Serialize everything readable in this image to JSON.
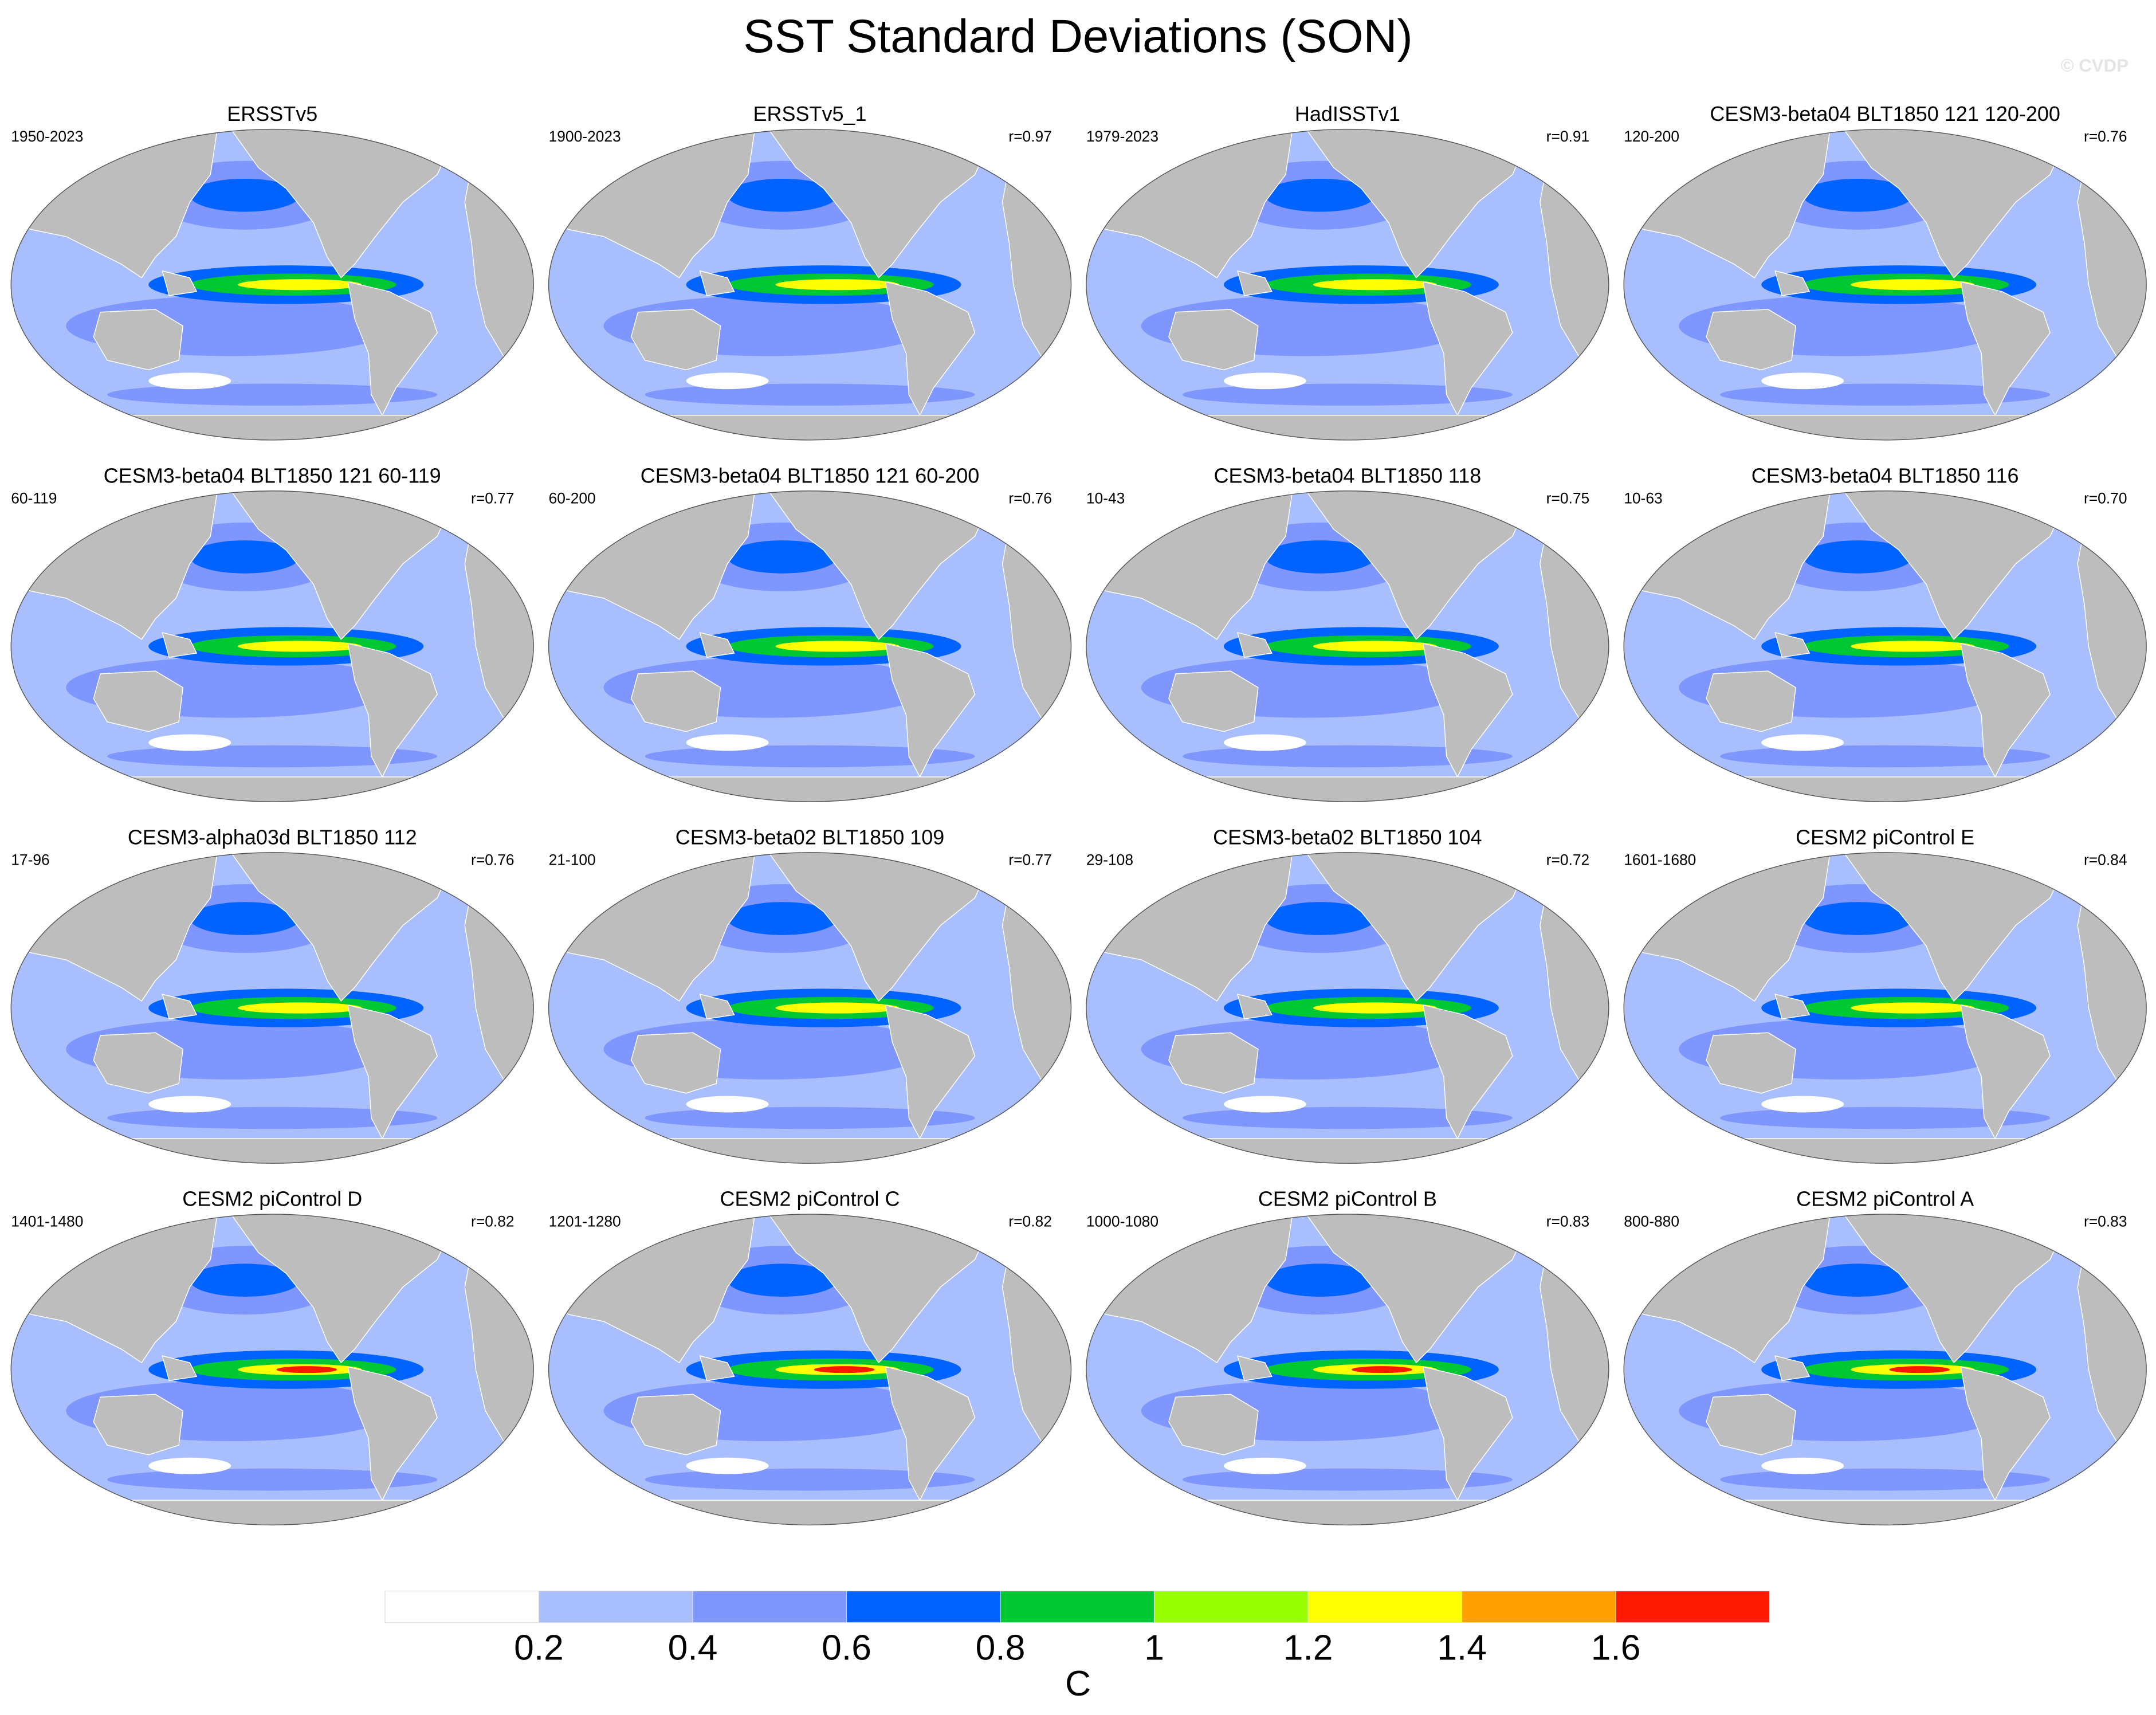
{
  "header": {
    "title": "SST Standard Deviations (SON)",
    "watermark": "© CVDP"
  },
  "panels": [
    {
      "title": "ERSSTv5",
      "period": "1950-2023"
    },
    {
      "title": "ERSSTv5_1",
      "period": "1900-2023",
      "r": "r=0.97"
    },
    {
      "title": "HadISSTv1",
      "period": "1979-2023",
      "r": "r=0.91"
    },
    {
      "title": "CESM3-beta04 BLT1850 121 120-200",
      "period": "120-200",
      "r": "r=0.76"
    },
    {
      "title": "CESM3-beta04 BLT1850 121 60-119",
      "period": "60-119",
      "r": "r=0.77"
    },
    {
      "title": "CESM3-beta04 BLT1850 121 60-200",
      "period": "60-200",
      "r": "r=0.76"
    },
    {
      "title": "CESM3-beta04 BLT1850 118",
      "period": "10-43",
      "r": "r=0.75"
    },
    {
      "title": "CESM3-beta04 BLT1850 116",
      "period": "10-63",
      "r": "r=0.70"
    },
    {
      "title": "CESM3-alpha03d BLT1850 112",
      "period": "17-96",
      "r": "r=0.76"
    },
    {
      "title": "CESM3-beta02 BLT1850 109",
      "period": "21-100",
      "r": "r=0.77"
    },
    {
      "title": "CESM3-beta02 BLT1850 104",
      "period": "29-108",
      "r": "r=0.72"
    },
    {
      "title": "CESM2 piControl E",
      "period": "1601-1680",
      "r": "r=0.84"
    },
    {
      "title": "CESM2 piControl D",
      "period": "1401-1480",
      "r": "r=0.82"
    },
    {
      "title": "CESM2 piControl C",
      "period": "1201-1280",
      "r": "r=0.82"
    },
    {
      "title": "CESM2 piControl B",
      "period": "1000-1080",
      "r": "r=0.83"
    },
    {
      "title": "CESM2 piControl A",
      "period": "800-880",
      "r": "r=0.83"
    }
  ],
  "colorbar": {
    "colors": [
      "#ffffff",
      "#a8befd",
      "#7f96ff",
      "#0063ff",
      "#00c832",
      "#97ff00",
      "#ffff00",
      "#ffa000",
      "#ff1900"
    ],
    "ticks": [
      0.2,
      0.4,
      0.6,
      0.8,
      1,
      1.2,
      1.4,
      1.6
    ],
    "label": "C"
  }
}
